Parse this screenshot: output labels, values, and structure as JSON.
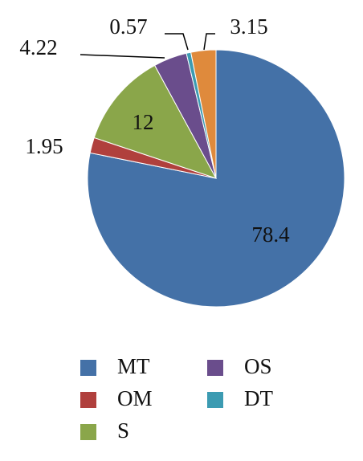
{
  "chart_data": {
    "type": "pie",
    "categories": [
      "MT",
      "OM",
      "S",
      "OS",
      "DT",
      null
    ],
    "values": [
      78.4,
      1.95,
      12,
      4.22,
      0.57,
      3.15
    ],
    "colors": [
      "#4471a7",
      "#b0403d",
      "#8aa64a",
      "#6a4d8c",
      "#3c9bb2",
      "#df8a3c"
    ],
    "legend": "bottom"
  }
}
